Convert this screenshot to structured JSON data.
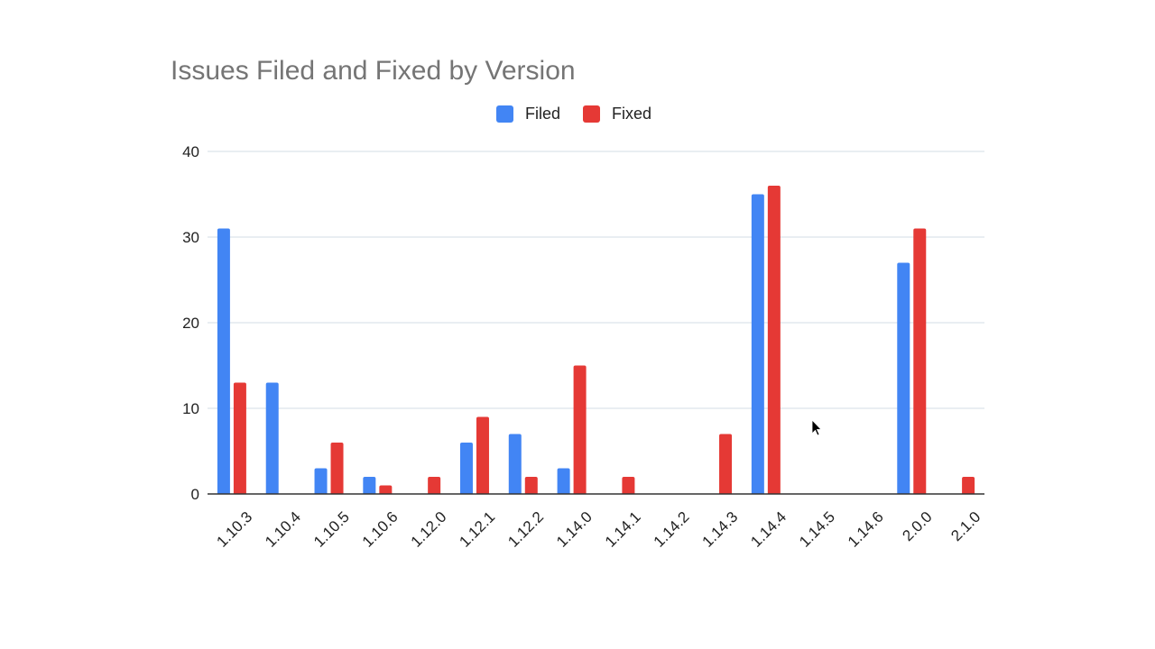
{
  "chart_data": {
    "type": "bar",
    "title": "Issues Filed and Fixed by Version",
    "categories": [
      "1.10.3",
      "1.10.4",
      "1.10.5",
      "1.10.6",
      "1.12.0",
      "1.12.1",
      "1.12.2",
      "1.14.0",
      "1.14.1",
      "1.14.2",
      "1.14.3",
      "1.14.4",
      "1.14.5",
      "1.14.6",
      "2.0.0",
      "2.1.0"
    ],
    "series": [
      {
        "name": "Filed",
        "color": "#4285f4",
        "values": [
          31,
          13,
          3,
          2,
          0,
          6,
          7,
          3,
          0,
          0,
          0,
          35,
          0,
          0,
          27,
          0
        ]
      },
      {
        "name": "Fixed",
        "color": "#e53935",
        "values": [
          13,
          0,
          6,
          1,
          2,
          9,
          2,
          15,
          2,
          0,
          7,
          36,
          0,
          0,
          31,
          2
        ]
      }
    ],
    "ylim": [
      0,
      40
    ],
    "yticks": [
      0,
      10,
      20,
      30,
      40
    ],
    "xlabel": "",
    "ylabel": "",
    "legend": "top",
    "grid": true
  }
}
